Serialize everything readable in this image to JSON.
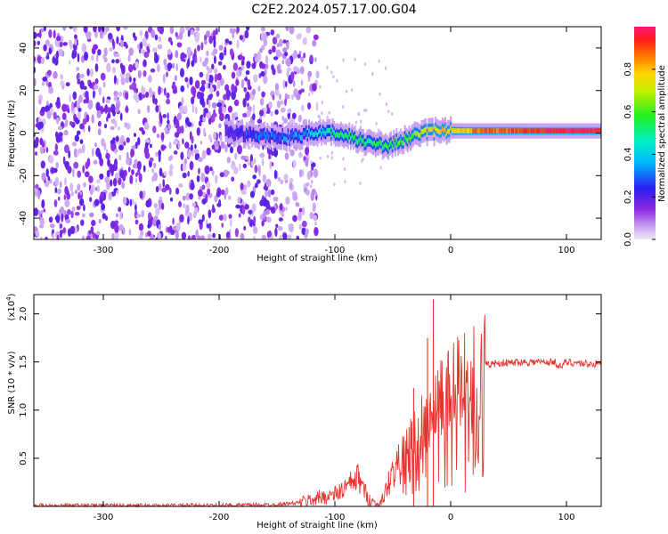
{
  "title": "C2E2.2024.057.17.00.G04",
  "chart_data": [
    {
      "type": "heatmap",
      "xlabel": "Height of straight line (km)",
      "ylabel": "Frequency (Hz)",
      "xlim": [
        -360,
        130
      ],
      "ylim": [
        -50,
        50
      ],
      "x_ticks": [
        -300,
        -200,
        -100,
        0,
        100
      ],
      "y_ticks": [
        -40,
        -20,
        0,
        20,
        40
      ],
      "colorbar": {
        "label": "Normalized spectral amplitude",
        "range": [
          0.0,
          1.0
        ],
        "ticks": [
          0.0,
          0.2,
          0.4,
          0.6,
          0.8
        ],
        "colormap": "rainbow (magenta-purple-blue-cyan-green-yellow-orange-red)"
      },
      "features": {
        "noise_region_x": [
          -360,
          -130
        ],
        "ridge": [
          [
            -195,
            0,
            0.2
          ],
          [
            -165,
            -1,
            0.3
          ],
          [
            -140,
            -2,
            0.3
          ],
          [
            -120,
            0,
            0.4
          ],
          [
            -100,
            0,
            0.5
          ],
          [
            -85,
            -2,
            0.55
          ],
          [
            -70,
            -5,
            0.5
          ],
          [
            -55,
            -6,
            0.55
          ],
          [
            -40,
            -3,
            0.6
          ],
          [
            -25,
            0,
            0.7
          ],
          [
            -10,
            1,
            0.8
          ],
          [
            0,
            1,
            0.75
          ],
          [
            20,
            1,
            0.85
          ],
          [
            50,
            1,
            0.9
          ],
          [
            80,
            1,
            0.95
          ],
          [
            100,
            1,
            1.0
          ],
          [
            130,
            1,
            0.95
          ]
        ]
      }
    },
    {
      "type": "line",
      "xlabel": "Height of straight line (km)",
      "ylabel": "SNR (10 * v/v)",
      "y_multiplier": "(x10^4)",
      "xlim": [
        -360,
        130
      ],
      "ylim": [
        0,
        2.2
      ],
      "x_ticks": [
        -300,
        -200,
        -100,
        0,
        100
      ],
      "y_ticks": [
        0.5,
        1.0,
        1.5,
        2.0
      ],
      "y_tick_labels": [
        "0.5",
        "1.0",
        "1.5",
        "2.0"
      ],
      "series": [
        {
          "color": "#e8332e",
          "x": [
            -360,
            -300,
            -250,
            -200,
            -150,
            -130,
            -110,
            -100,
            -90,
            -80,
            -72,
            -65,
            -60,
            -55,
            -50,
            -45,
            -40,
            -35,
            -30,
            -25,
            -20,
            -15,
            -10,
            -5,
            0,
            5,
            10,
            20,
            30,
            40,
            50,
            60,
            70,
            80,
            90,
            95,
            100,
            110,
            120,
            130
          ],
          "y": [
            0.01,
            0.01,
            0.01,
            0.01,
            0.02,
            0.04,
            0.1,
            0.12,
            0.2,
            0.3,
            0.1,
            0.02,
            0.03,
            0.2,
            0.35,
            0.45,
            0.55,
            0.65,
            0.75,
            0.85,
            0.92,
            1.0,
            1.08,
            1.15,
            1.22,
            1.3,
            1.35,
            1.42,
            1.47,
            1.49,
            1.49,
            1.5,
            1.5,
            1.5,
            1.5,
            1.45,
            1.5,
            1.49,
            1.48,
            1.48
          ],
          "spikes": [
            [
              -32,
              1.23
            ],
            [
              -20,
              1.75
            ],
            [
              -15,
              2.15
            ]
          ]
        }
      ]
    }
  ]
}
